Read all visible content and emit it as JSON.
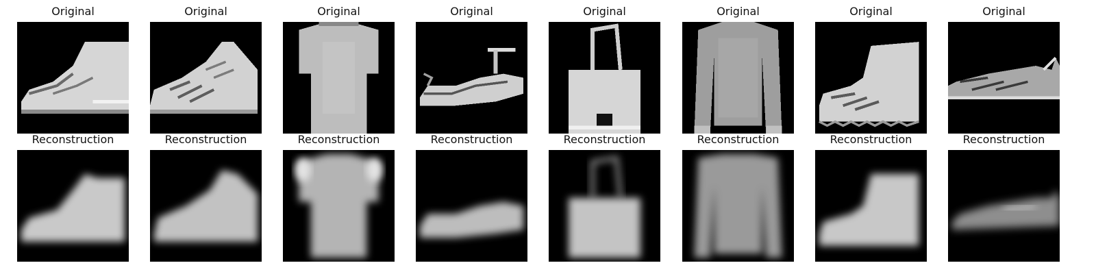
{
  "rows": [
    {
      "label": "Original",
      "items": [
        {
          "depicts": "ankle-boot"
        },
        {
          "depicts": "sneaker-high-top"
        },
        {
          "depicts": "t-shirt"
        },
        {
          "depicts": "sandal"
        },
        {
          "depicts": "handbag"
        },
        {
          "depicts": "long-sleeve-pullover"
        },
        {
          "depicts": "ankle-boot"
        },
        {
          "depicts": "low-sneaker"
        }
      ]
    },
    {
      "label": "Reconstruction",
      "items": [
        {
          "depicts": "ankle-boot"
        },
        {
          "depicts": "sneaker-high-top"
        },
        {
          "depicts": "t-shirt"
        },
        {
          "depicts": "sandal"
        },
        {
          "depicts": "handbag"
        },
        {
          "depicts": "long-sleeve-pullover"
        },
        {
          "depicts": "ankle-boot"
        },
        {
          "depicts": "low-sneaker"
        }
      ]
    }
  ],
  "colors": {
    "background": "#ffffff",
    "image_background": "#000000",
    "garment_light": "#d8d8d8",
    "garment_mid": "#a8a8a8",
    "garment_dark": "#5a5a5a"
  }
}
